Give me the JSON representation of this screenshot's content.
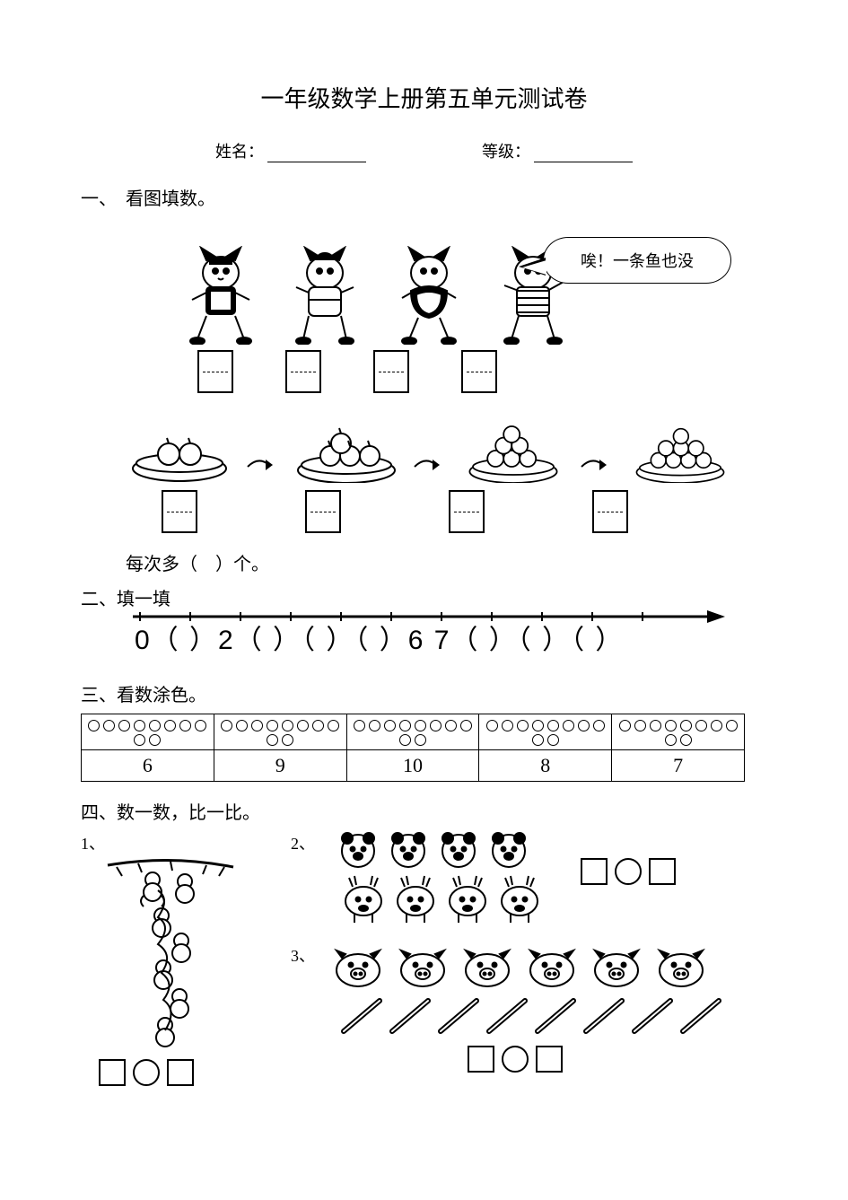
{
  "title": "一年级数学上册第五单元测试卷",
  "info": {
    "name_label": "姓名：",
    "grade_label": "等级："
  },
  "s1": {
    "heading": "一、　看图填数。",
    "speech": "唉！一条鱼也没",
    "each_more": "每次多（　）个。"
  },
  "s2": {
    "heading": "二、填一填",
    "line": "0（ ）2（ ）（ ）（ ）6 7（ ）（ ）（ ）"
  },
  "s3": {
    "heading": "三、看数涂色。",
    "numbers": [
      "6",
      "9",
      "10",
      "8",
      "7"
    ],
    "circles_per_cell": 10
  },
  "s4": {
    "heading": "四、数一数，比一比。",
    "q1": "1、",
    "q2": "2、",
    "q3": "3、",
    "monkeys_up": 2,
    "monkeys_down": 5,
    "bears": 4,
    "deer": 4,
    "pigs": 6,
    "sticks": 8
  }
}
